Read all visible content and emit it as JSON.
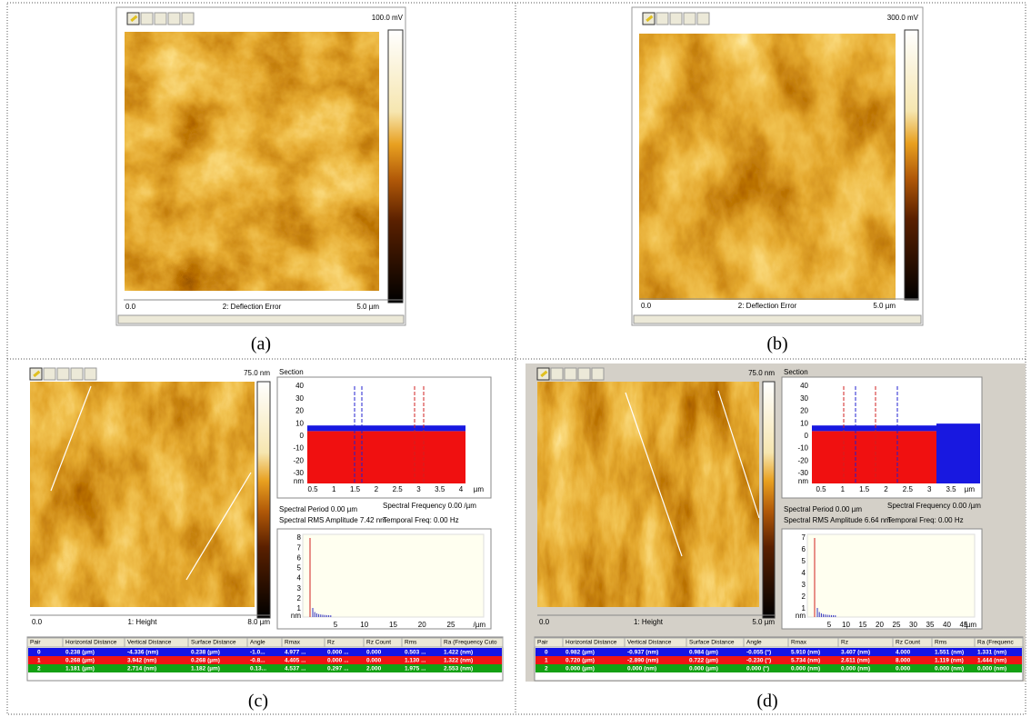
{
  "panels": [
    {
      "caption": "(a)",
      "scale_max": "100.0 mV",
      "axis_start": "0.0",
      "channel": "2: Deflection Error",
      "axis_end": "5.0 µm"
    },
    {
      "caption": "(b)",
      "scale_max": "300.0 mV",
      "axis_start": "0.0",
      "channel": "2: Deflection Error",
      "axis_end": "5.0 µm"
    },
    {
      "caption": "(c)",
      "scale_max": "75.0 nm",
      "axis_start": "0.0",
      "channel": "1: Height",
      "axis_end": "8.0 µm",
      "section": {
        "title": "Section",
        "yticks": [
          40,
          30,
          20,
          10,
          0,
          -10,
          -20,
          -30
        ],
        "y_unit": "nm",
        "xticks": [
          0.5,
          1,
          1.5,
          2,
          2.5,
          3,
          3.5,
          4
        ],
        "x_unit": "µm"
      },
      "spectral": {
        "period": "Spectral Period 0.00 µm",
        "frequency": "Spectral Frequency 0.00 /µm",
        "rms_amplitude": "Spectral RMS Amplitude 7.42 nm",
        "temporal_freq": "Temporal Freq: 0.00 Hz"
      },
      "spectrum": {
        "yticks": [
          8,
          7,
          6,
          5,
          4,
          3,
          2,
          1
        ],
        "y_unit": "nm",
        "xticks": [
          5,
          10,
          15,
          20,
          25
        ],
        "x_unit": "/µm"
      },
      "table": {
        "columns": [
          "Pair",
          "Horizontal Distance",
          "Vertical Distance",
          "Surface Distance",
          "Angle",
          "Rmax",
          "Rz",
          "Rz Count",
          "Rms",
          "Ra (Frequency Cuto"
        ],
        "rows": [
          [
            0,
            "0.238 (µm)",
            "-4.336 (nm)",
            "0.238 (µm)",
            "-1.0...",
            "4.977 ...",
            "0.000 ...",
            "0.000",
            "0.503 ...",
            "1.422 (nm)"
          ],
          [
            1,
            "0.268 (µm)",
            "3.942 (nm)",
            "0.268 (µm)",
            "-0.8...",
            "4.405 ...",
            "0.000 ...",
            "0.000",
            "1.130 ...",
            "1.322 (nm)"
          ],
          [
            2,
            "1.181 (µm)",
            "2.714 (nm)",
            "1.182 (µm)",
            "0.13...",
            "4.537 ...",
            "0.297 ...",
            "2.000",
            "1.975 ...",
            "2.553 (nm)"
          ]
        ]
      }
    },
    {
      "caption": "(d)",
      "scale_max": "75.0 nm",
      "axis_start": "0.0",
      "channel": "1: Height",
      "axis_end": "5.0 µm",
      "section": {
        "title": "Section",
        "yticks": [
          40,
          30,
          20,
          10,
          0,
          -10,
          -20,
          -30
        ],
        "y_unit": "nm",
        "xticks": [
          0.5,
          1,
          1.5,
          2,
          2.5,
          3,
          3.5
        ],
        "x_unit": "µm"
      },
      "spectral": {
        "period": "Spectral Period 0.00 µm",
        "frequency": "Spectral Frequency 0.00 /µm",
        "rms_amplitude": "Spectral RMS Amplitude 6.64 nm",
        "temporal_freq": "Temporal Freq: 0.00 Hz"
      },
      "spectrum": {
        "yticks": [
          7,
          6,
          5,
          4,
          3,
          2,
          1
        ],
        "y_unit": "nm",
        "xticks": [
          5,
          10,
          15,
          20,
          25,
          30,
          35,
          40,
          45
        ],
        "x_unit": "/µm"
      },
      "table": {
        "columns": [
          "Pair",
          "Horizontal Distance",
          "Vertical Distance",
          "Surface Distance",
          "Angle",
          "Rmax",
          "Rz",
          "Rz Count",
          "Rms",
          "Ra (Frequenc"
        ],
        "rows": [
          [
            0,
            "0.982 (µm)",
            "-0.937 (nm)",
            "0.984 (µm)",
            "-0.055 (°)",
            "5.910 (nm)",
            "3.407 (nm)",
            "4.000",
            "1.551 (nm)",
            "1.331 (nm)"
          ],
          [
            1,
            "0.720 (µm)",
            "-2.890 (nm)",
            "0.722 (µm)",
            "-0.230 (°)",
            "5.734 (nm)",
            "2.611 (nm)",
            "8.000",
            "1.119 (nm)",
            "1.444 (nm)"
          ],
          [
            2,
            "0.000 (µm)",
            "0.000 (nm)",
            "0.000 (µm)",
            "0.000 (°)",
            "0.000 (nm)",
            "0.000 (nm)",
            "0.000",
            "0.000 (nm)",
            "0.000 (nm)"
          ]
        ]
      }
    }
  ]
}
